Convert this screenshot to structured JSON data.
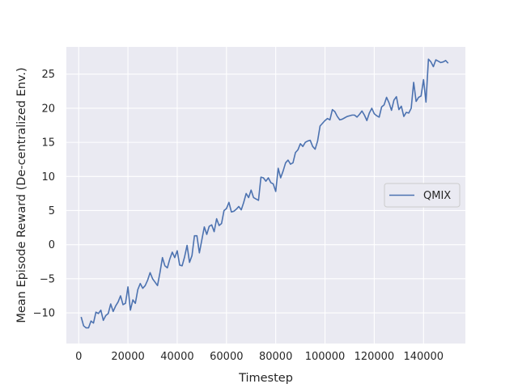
{
  "chart_data": {
    "type": "line",
    "title": "",
    "xlabel": "Timestep",
    "ylabel": "Mean Episode Reward (De-centralized Env.)",
    "xlim": [
      -5000,
      157000
    ],
    "ylim": [
      -14.5,
      29
    ],
    "x_ticks": [
      0,
      20000,
      40000,
      60000,
      80000,
      100000,
      120000,
      140000
    ],
    "x_tick_labels": [
      "0",
      "20000",
      "40000",
      "60000",
      "80000",
      "100000",
      "120000",
      "140000"
    ],
    "y_ticks": [
      -10,
      -5,
      0,
      5,
      10,
      15,
      20,
      25
    ],
    "y_tick_labels": [
      "−10",
      "−5",
      "0",
      "5",
      "10",
      "15",
      "20",
      "25"
    ],
    "grid": true,
    "legend_position": "center-right",
    "background_color": "#eaeaf2",
    "grid_color": "#ffffff",
    "series": [
      {
        "name": "QMIX",
        "color": "#4c72b0",
        "x": [
          1000,
          2000,
          3000,
          4000,
          5000,
          6000,
          7000,
          8000,
          9000,
          10000,
          11000,
          12000,
          13000,
          14000,
          15000,
          16000,
          17000,
          18000,
          19000,
          20000,
          21000,
          22000,
          23000,
          24000,
          25000,
          26000,
          27000,
          28000,
          29000,
          30000,
          31000,
          32000,
          33000,
          34000,
          35000,
          36000,
          37000,
          38000,
          39000,
          40000,
          41000,
          42000,
          43000,
          44000,
          45000,
          46000,
          47000,
          48000,
          49000,
          50000,
          51000,
          52000,
          53000,
          54000,
          55000,
          56000,
          57000,
          58000,
          59000,
          60000,
          61000,
          62000,
          63000,
          64000,
          65000,
          66000,
          67000,
          68000,
          69000,
          70000,
          71000,
          72000,
          73000,
          74000,
          75000,
          76000,
          77000,
          78000,
          79000,
          80000,
          81000,
          82000,
          83000,
          84000,
          85000,
          86000,
          87000,
          88000,
          89000,
          90000,
          91000,
          92000,
          93000,
          94000,
          95000,
          96000,
          97000,
          98000,
          99000,
          100000,
          101000,
          102000,
          103000,
          104000,
          105000,
          106000,
          107000,
          108000,
          109000,
          110000,
          111000,
          112000,
          113000,
          114000,
          115000,
          116000,
          117000,
          118000,
          119000,
          120000,
          121000,
          122000,
          123000,
          124000,
          125000,
          126000,
          127000,
          128000,
          129000,
          130000,
          131000,
          132000,
          133000,
          134000,
          135000,
          136000,
          137000,
          138000,
          139000,
          140000,
          141000,
          142000,
          143000,
          144000,
          145000,
          146000,
          147000,
          148000,
          149000,
          150000
        ],
        "y": [
          -10.6,
          -11.9,
          -12.2,
          -12.2,
          -11.2,
          -11.5,
          -9.9,
          -10.1,
          -9.6,
          -11.1,
          -10.4,
          -10.1,
          -8.7,
          -9.8,
          -9,
          -8.4,
          -7.5,
          -8.8,
          -8.6,
          -6.2,
          -9.6,
          -8.1,
          -8.6,
          -6.6,
          -5.7,
          -6.4,
          -6,
          -5.2,
          -4.1,
          -5,
          -5.5,
          -6,
          -4.1,
          -1.9,
          -3.1,
          -3.4,
          -2.1,
          -1.1,
          -1.9,
          -0.9,
          -3,
          -3.1,
          -1.8,
          -0.1,
          -2.6,
          -1.6,
          1.3,
          1.3,
          -1.2,
          0.7,
          2.6,
          1.5,
          2.7,
          2.9,
          1.9,
          3.8,
          2.8,
          3.1,
          5,
          5.3,
          6.2,
          4.8,
          4.9,
          5.2,
          5.6,
          5.1,
          6.2,
          7.5,
          6.9,
          8,
          6.9,
          6.7,
          6.5,
          9.9,
          9.8,
          9.3,
          9.8,
          9.1,
          8.9,
          7.8,
          11.2,
          9.8,
          10.8,
          12,
          12.4,
          11.8,
          12,
          13.5,
          13.9,
          14.8,
          14.4,
          15,
          15.2,
          15.3,
          14.4,
          14,
          15.2,
          17.4,
          17.8,
          18.2,
          18.5,
          18.3,
          19.8,
          19.5,
          18.8,
          18.3,
          18.4,
          18.6,
          18.8,
          18.9,
          19,
          19,
          18.7,
          19.1,
          19.6,
          19,
          18.2,
          19.3,
          20,
          19.2,
          18.9,
          18.7,
          20.2,
          20.5,
          21.6,
          20.8,
          19.7,
          21.2,
          21.7,
          19.8,
          20.3,
          18.8,
          19.4,
          19.3,
          20,
          23.8,
          21,
          21.6,
          21.8,
          24.2,
          20.9,
          27.2,
          26.8,
          26.1,
          27.1,
          26.9,
          26.7,
          26.8,
          27,
          26.6
        ]
      }
    ]
  }
}
